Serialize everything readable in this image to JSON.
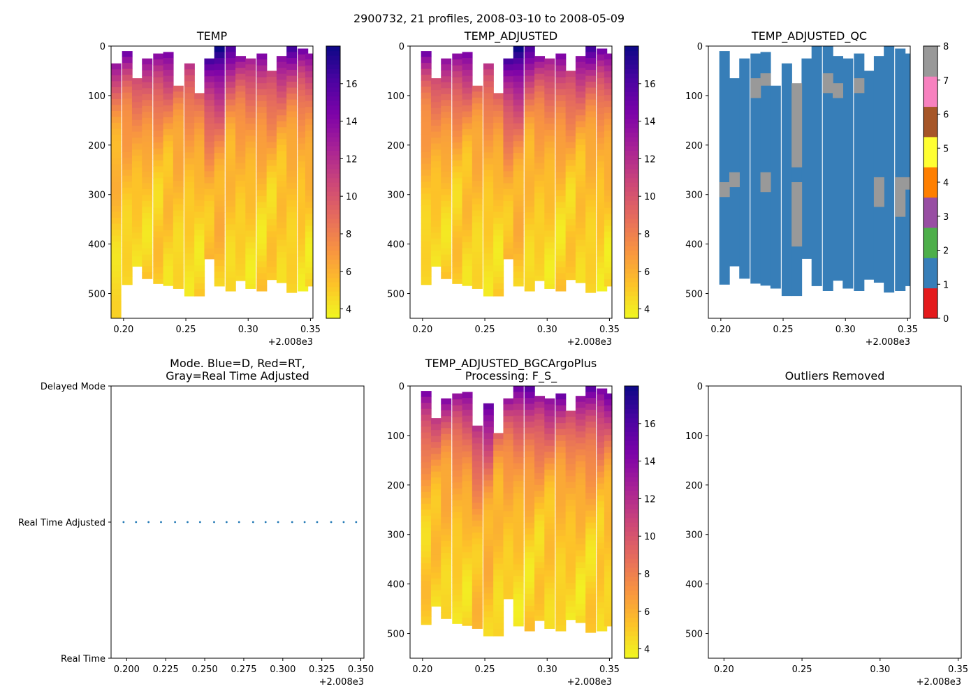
{
  "figure": {
    "suptitle": "2900732, 21 profiles, 2008-03-10 to 2008-05-09"
  },
  "chart_data": [
    {
      "id": "temp",
      "type": "heatmap",
      "title": "TEMP",
      "x_ticks": [
        "0.20",
        "0.25",
        "0.30",
        "0.35"
      ],
      "x_tick_values": [
        0.2,
        0.25,
        0.3,
        0.35
      ],
      "x_offset_label": "+2.008e3",
      "xlim": [
        0.19,
        0.352
      ],
      "ylim": [
        550,
        0
      ],
      "y_ticks": [
        "0",
        "100",
        "200",
        "300",
        "400",
        "500"
      ],
      "y_tick_values": [
        0,
        100,
        200,
        300,
        400,
        500
      ],
      "colormap": "plasma_r",
      "clim": [
        3.5,
        18
      ],
      "colorbar_ticks": [
        "4",
        "6",
        "8",
        "10",
        "12",
        "14",
        "16"
      ],
      "colorbar_tick_values": [
        4,
        6,
        8,
        10,
        12,
        14,
        16
      ],
      "profile_x": [
        0.194,
        0.203,
        0.211,
        0.219,
        0.228,
        0.236,
        0.244,
        0.253,
        0.261,
        0.269,
        0.277,
        0.286,
        0.294,
        0.302,
        0.311,
        0.319,
        0.327,
        0.335,
        0.344,
        0.35
      ],
      "profile_top": [
        35,
        10,
        65,
        25,
        15,
        12,
        80,
        35,
        95,
        25,
        0,
        0,
        20,
        25,
        15,
        50,
        20,
        0,
        5,
        15
      ],
      "profile_bottom": [
        550,
        482,
        445,
        470,
        480,
        484,
        490,
        505,
        505,
        430,
        485,
        495,
        474,
        490,
        495,
        472,
        478,
        498,
        495,
        485
      ]
    },
    {
      "id": "temp_adjusted",
      "type": "heatmap",
      "title": "TEMP_ADJUSTED",
      "x_ticks": [
        "0.20",
        "0.25",
        "0.30",
        "0.35"
      ],
      "x_tick_values": [
        0.2,
        0.25,
        0.3,
        0.35
      ],
      "x_offset_label": "+2.008e3",
      "xlim": [
        0.19,
        0.352
      ],
      "ylim": [
        550,
        0
      ],
      "y_ticks": [
        "0",
        "100",
        "200",
        "300",
        "400",
        "500"
      ],
      "y_tick_values": [
        0,
        100,
        200,
        300,
        400,
        500
      ],
      "colormap": "plasma_r",
      "clim": [
        3.5,
        18
      ],
      "colorbar_ticks": [
        "4",
        "6",
        "8",
        "10",
        "12",
        "14",
        "16"
      ],
      "colorbar_tick_values": [
        4,
        6,
        8,
        10,
        12,
        14,
        16
      ],
      "profile_x": [
        0.203,
        0.211,
        0.219,
        0.228,
        0.236,
        0.244,
        0.253,
        0.261,
        0.269,
        0.277,
        0.286,
        0.294,
        0.302,
        0.311,
        0.319,
        0.327,
        0.335,
        0.344,
        0.35
      ],
      "profile_top": [
        10,
        65,
        25,
        15,
        12,
        80,
        35,
        95,
        25,
        0,
        0,
        20,
        25,
        15,
        50,
        20,
        0,
        5,
        15
      ],
      "profile_bottom": [
        482,
        445,
        470,
        480,
        484,
        490,
        505,
        505,
        430,
        485,
        495,
        474,
        490,
        495,
        472,
        478,
        498,
        495,
        485
      ]
    },
    {
      "id": "temp_adjusted_qc",
      "type": "heatmap",
      "title": "TEMP_ADJUSTED_QC",
      "x_ticks": [
        "0.20",
        "0.25",
        "0.30",
        "0.35"
      ],
      "x_tick_values": [
        0.2,
        0.25,
        0.3,
        0.35
      ],
      "x_offset_label": "+2.008e3",
      "xlim": [
        0.19,
        0.352
      ],
      "ylim": [
        550,
        0
      ],
      "y_ticks": [
        "0",
        "100",
        "200",
        "300",
        "400",
        "500"
      ],
      "y_tick_values": [
        0,
        100,
        200,
        300,
        400,
        500
      ],
      "base_flag": 1,
      "flag_colors": [
        "#e41a1c",
        "#377eb8",
        "#4daf4a",
        "#984ea3",
        "#ff7f00",
        "#ffff33",
        "#a65628",
        "#f781bf",
        "#999999"
      ],
      "colorbar_ticks": [
        "0",
        "1",
        "2",
        "3",
        "4",
        "5",
        "6",
        "7",
        "8"
      ],
      "colorbar_tick_values": [
        0,
        1,
        2,
        3,
        4,
        5,
        6,
        7,
        8
      ],
      "profile_x": [
        0.203,
        0.211,
        0.219,
        0.228,
        0.236,
        0.244,
        0.253,
        0.261,
        0.269,
        0.277,
        0.286,
        0.294,
        0.302,
        0.311,
        0.319,
        0.327,
        0.335,
        0.344,
        0.35
      ],
      "profile_top": [
        10,
        65,
        25,
        15,
        12,
        80,
        35,
        95,
        25,
        0,
        0,
        20,
        25,
        15,
        50,
        20,
        0,
        5,
        15
      ],
      "profile_bottom": [
        482,
        445,
        470,
        480,
        484,
        490,
        505,
        505,
        430,
        485,
        495,
        474,
        490,
        495,
        472,
        478,
        498,
        495,
        485
      ],
      "flag_patches": [
        {
          "x": 0.203,
          "top": 275,
          "bottom": 305,
          "flag": 8
        },
        {
          "x": 0.211,
          "top": 255,
          "bottom": 285,
          "flag": 8
        },
        {
          "x": 0.228,
          "top": 65,
          "bottom": 105,
          "flag": 8
        },
        {
          "x": 0.236,
          "top": 55,
          "bottom": 80,
          "flag": 8
        },
        {
          "x": 0.236,
          "top": 255,
          "bottom": 295,
          "flag": 8
        },
        {
          "x": 0.261,
          "top": 75,
          "bottom": 245,
          "flag": 8
        },
        {
          "x": 0.261,
          "top": 275,
          "bottom": 405,
          "flag": 8
        },
        {
          "x": 0.286,
          "top": 55,
          "bottom": 95,
          "flag": 8
        },
        {
          "x": 0.294,
          "top": 75,
          "bottom": 105,
          "flag": 8
        },
        {
          "x": 0.311,
          "top": 65,
          "bottom": 95,
          "flag": 8
        },
        {
          "x": 0.327,
          "top": 265,
          "bottom": 325,
          "flag": 8
        },
        {
          "x": 0.344,
          "top": 265,
          "bottom": 345,
          "flag": 8
        },
        {
          "x": 0.35,
          "top": 265,
          "bottom": 290,
          "flag": 8
        }
      ]
    },
    {
      "id": "mode",
      "type": "scatter",
      "title_lines": [
        "Mode. Blue=D, Red=RT,",
        "Gray=Real Time Adjusted"
      ],
      "x_ticks": [
        "0.200",
        "0.225",
        "0.250",
        "0.275",
        "0.300",
        "0.325",
        "0.350"
      ],
      "x_tick_values": [
        0.2,
        0.225,
        0.25,
        0.275,
        0.3,
        0.325,
        0.35
      ],
      "x_offset_label": "+2.008e3",
      "xlim": [
        0.19,
        0.352
      ],
      "y_ticks": [
        "Delayed Mode",
        "Real Time Adjusted",
        "Real Time"
      ],
      "y_tick_values": [
        1,
        0.5,
        0
      ],
      "ylim": [
        0,
        1
      ],
      "marker_color": "#1f77b4",
      "x": [
        0.198,
        0.206,
        0.214,
        0.222,
        0.231,
        0.239,
        0.247,
        0.256,
        0.264,
        0.272,
        0.281,
        0.289,
        0.297,
        0.306,
        0.314,
        0.322,
        0.331,
        0.339,
        0.347
      ],
      "y": [
        0.5,
        0.5,
        0.5,
        0.5,
        0.5,
        0.5,
        0.5,
        0.5,
        0.5,
        0.5,
        0.5,
        0.5,
        0.5,
        0.5,
        0.5,
        0.5,
        0.5,
        0.5,
        0.5
      ]
    },
    {
      "id": "temp_bgc",
      "type": "heatmap",
      "title_lines": [
        "TEMP_ADJUSTED_BGCArgoPlus",
        "Processing: F_S_"
      ],
      "x_ticks": [
        "0.20",
        "0.25",
        "0.30",
        "0.35"
      ],
      "x_tick_values": [
        0.2,
        0.25,
        0.3,
        0.35
      ],
      "x_offset_label": "+2.008e3",
      "xlim": [
        0.19,
        0.352
      ],
      "ylim": [
        550,
        0
      ],
      "y_ticks": [
        "0",
        "100",
        "200",
        "300",
        "400",
        "500"
      ],
      "y_tick_values": [
        0,
        100,
        200,
        300,
        400,
        500
      ],
      "colormap": "plasma_r",
      "clim": [
        3.5,
        18
      ],
      "colorbar_ticks": [
        "4",
        "6",
        "8",
        "10",
        "12",
        "14",
        "16"
      ],
      "colorbar_tick_values": [
        4,
        6,
        8,
        10,
        12,
        14,
        16
      ],
      "profile_x": [
        0.203,
        0.211,
        0.219,
        0.228,
        0.236,
        0.244,
        0.253,
        0.261,
        0.269,
        0.277,
        0.286,
        0.294,
        0.302,
        0.311,
        0.319,
        0.327,
        0.335,
        0.344,
        0.35
      ],
      "profile_top": [
        10,
        65,
        25,
        15,
        12,
        80,
        35,
        95,
        25,
        0,
        0,
        20,
        25,
        15,
        50,
        20,
        0,
        5,
        15
      ],
      "profile_bottom": [
        482,
        445,
        470,
        480,
        484,
        490,
        505,
        505,
        430,
        485,
        495,
        474,
        490,
        495,
        472,
        478,
        498,
        495,
        485
      ]
    },
    {
      "id": "outliers",
      "type": "scatter",
      "title": "Outliers Removed",
      "x_ticks": [
        "0.20",
        "0.25",
        "0.30",
        "0.35"
      ],
      "x_tick_values": [
        0.2,
        0.25,
        0.3,
        0.35
      ],
      "x_offset_label": "+2.008e3",
      "xlim": [
        0.19,
        0.352
      ],
      "ylim": [
        550,
        0
      ],
      "y_ticks": [
        "0",
        "100",
        "200",
        "300",
        "400",
        "500"
      ],
      "y_tick_values": [
        0,
        100,
        200,
        300,
        400,
        500
      ],
      "x": [],
      "y": []
    }
  ]
}
